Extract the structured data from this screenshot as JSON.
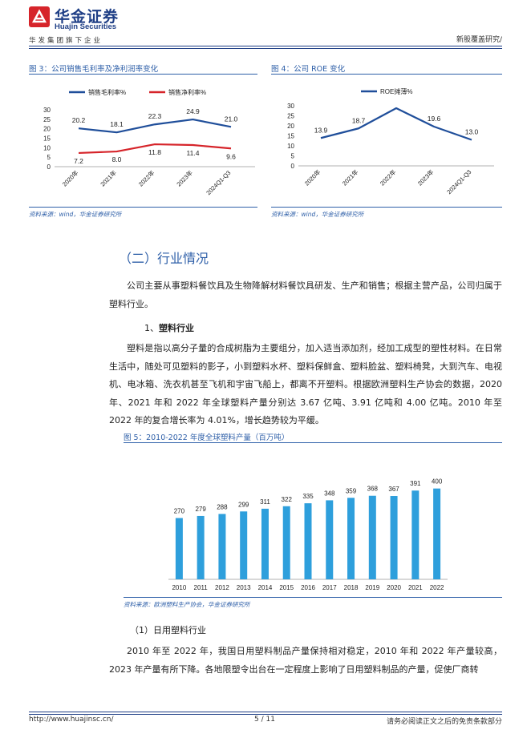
{
  "header": {
    "logo_cn": "华金证券",
    "logo_en": "Huajin Securities",
    "tagline": "华发集团旗下企业",
    "report_type": "新股覆盖研究/"
  },
  "figure3": {
    "title": "图 3：公司销售毛利率及净利润率变化",
    "source": "资料来源：wind，华金证券研究所",
    "chart_data": {
      "type": "line",
      "categories": [
        "2020年",
        "2021年",
        "2022年",
        "2023年",
        "2024Q1-Q3"
      ],
      "series": [
        {
          "name": "销售毛利率%",
          "values": [
            20.2,
            18.1,
            22.3,
            24.9,
            21.0
          ],
          "color": "#1f4e9a"
        },
        {
          "name": "销售净利率%",
          "values": [
            7.2,
            8.0,
            11.8,
            11.4,
            9.6
          ],
          "color": "#d6242a"
        }
      ],
      "value_labels": {
        "销售毛利率%": [
          "20.2",
          "18.1",
          "22.3",
          "24.9",
          "21.0"
        ],
        "销售净利率%": [
          "7.2",
          "8.0",
          "11.8",
          "11.4",
          "9.6"
        ]
      },
      "ylim": [
        0,
        30
      ],
      "yticks": [
        "0",
        "5",
        "10",
        "15",
        "20",
        "25",
        "30"
      ],
      "legend": "top",
      "grid": false
    }
  },
  "figure4": {
    "title": "图 4：公司 ROE 变化",
    "source": "资料来源：wind，华金证券研究所",
    "chart_data": {
      "type": "line",
      "categories": [
        "2020年",
        "2021年",
        "2022年",
        "2023年",
        "2024Q1-Q3"
      ],
      "series": [
        {
          "name": "ROE摊薄%",
          "values": [
            13.9,
            18.7,
            28.8,
            19.6,
            13.0
          ],
          "color": "#1f4e9a"
        }
      ],
      "value_labels": {
        "ROE摊薄%": [
          "13.9",
          "18.7",
          "",
          "19.6",
          "13.0"
        ]
      },
      "ylim": [
        0,
        30
      ],
      "yticks": [
        "0",
        "5",
        "10",
        "15",
        "20",
        "25",
        "30"
      ],
      "legend": "top",
      "grid": false
    }
  },
  "section_title": "（二）行业情况",
  "intro": "公司主要从事塑料餐饮具及生物降解材料餐饮具研发、生产和销售；根据主营产品，公司归属于塑料行业。",
  "subsection1": {
    "num": "1、",
    "title": "塑料行业"
  },
  "para_plastic": "塑料是指以高分子量的合成树脂为主要组分，加入适当添加剂，经加工成型的塑性材料。在日常生活中，随处可见塑料的影子，小到塑料水杯、塑料保鲜盒、塑料脸盆、塑料椅凳，大到汽车、电视机、电冰箱、洗衣机甚至飞机和宇宙飞船上，都离不开塑料。根据欧洲塑料生产协会的数据，2020 年、2021 年和 2022 年全球塑料产量分别达 3.67 亿吨、3.91 亿吨和 4.00 亿吨。2010 年至 2022 年的复合增长率为 4.01%，增长趋势较为平缓。",
  "figure5": {
    "title": "图 5：2010-2022 年度全球塑料产量（百万吨）",
    "source": "资料来源：欧洲塑料生产协会，华金证券研究所",
    "chart_data": {
      "type": "bar",
      "categories": [
        "2010",
        "2011",
        "2012",
        "2013",
        "2014",
        "2015",
        "2016",
        "2017",
        "2018",
        "2019",
        "2020",
        "2021",
        "2022"
      ],
      "values": [
        270,
        279,
        288,
        299,
        311,
        322,
        335,
        348,
        359,
        368,
        367,
        391,
        400
      ],
      "color": "#2e9fdc",
      "grid": false
    }
  },
  "subsection2": "（1）日用塑料行业",
  "para_daily": "2010 年至 2022 年，我国日用塑料制品产量保持相对稳定，2010 年和 2022 年产量较高，2023 年产量有所下降。各地限塑令出台在一定程度上影响了日用塑料制品的产量，促使厂商转",
  "footer": {
    "url": "http://www.huajinsc.cn/",
    "page": "5 / 11",
    "disclaimer": "请务必阅读正文之后的免责条款部分"
  }
}
